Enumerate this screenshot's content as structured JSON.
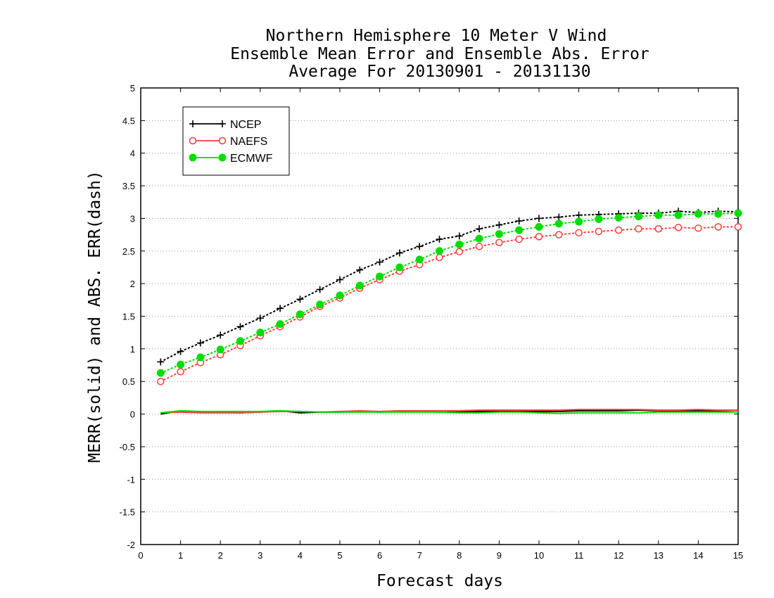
{
  "chart_data": {
    "type": "line",
    "title": [
      "Northern Hemisphere 10 Meter V Wind",
      "Ensemble Mean Error and Ensemble Abs. Error",
      "Average For 20130901 - 20131130"
    ],
    "xlabel": "Forecast days",
    "ylabel": "MERR(solid) and ABS. ERR(dash)",
    "xlim": [
      0,
      15
    ],
    "ylim": [
      -2,
      5
    ],
    "xticks": [
      0,
      1,
      2,
      3,
      4,
      5,
      6,
      7,
      8,
      9,
      10,
      11,
      12,
      13,
      14,
      15
    ],
    "yticks": [
      -2,
      -1.5,
      -1,
      -0.5,
      0,
      0.5,
      1,
      1.5,
      2,
      2.5,
      3,
      3.5,
      4,
      4.5,
      5
    ],
    "grid": "horizontal dotted",
    "legend_position": "top-left",
    "x": [
      0.5,
      1,
      1.5,
      2,
      2.5,
      3,
      3.5,
      4,
      4.5,
      5,
      5.5,
      6,
      6.5,
      7,
      7.5,
      8,
      8.5,
      9,
      9.5,
      10,
      10.5,
      11,
      11.5,
      12,
      12.5,
      13,
      13.5,
      14,
      14.5,
      15
    ],
    "series": [
      {
        "name": "NCEP",
        "color": "#000000",
        "marker": "plus",
        "abs_err": [
          0.8,
          0.96,
          1.09,
          1.21,
          1.34,
          1.47,
          1.62,
          1.76,
          1.91,
          2.06,
          2.21,
          2.33,
          2.47,
          2.57,
          2.68,
          2.73,
          2.84,
          2.9,
          2.96,
          3.0,
          3.02,
          3.05,
          3.06,
          3.07,
          3.08,
          3.08,
          3.11,
          3.09,
          3.11,
          3.1
        ],
        "mean_err": [
          0.0,
          0.05,
          0.03,
          0.03,
          0.02,
          0.03,
          0.05,
          0.02,
          0.03,
          0.03,
          0.04,
          0.03,
          0.04,
          0.04,
          0.03,
          0.03,
          0.04,
          0.04,
          0.05,
          0.04,
          0.04,
          0.05,
          0.05,
          0.05,
          0.06,
          0.05,
          0.05,
          0.05,
          0.05,
          0.06
        ]
      },
      {
        "name": "NAEFS",
        "color": "#ff3b3b",
        "marker": "open-circle",
        "abs_err": [
          0.5,
          0.65,
          0.79,
          0.91,
          1.05,
          1.2,
          1.34,
          1.49,
          1.65,
          1.78,
          1.93,
          2.06,
          2.19,
          2.29,
          2.4,
          2.49,
          2.57,
          2.63,
          2.68,
          2.72,
          2.75,
          2.78,
          2.8,
          2.82,
          2.84,
          2.84,
          2.86,
          2.85,
          2.87,
          2.87
        ],
        "mean_err": [
          0.02,
          0.03,
          0.02,
          0.02,
          0.02,
          0.03,
          0.04,
          0.04,
          0.03,
          0.04,
          0.05,
          0.04,
          0.05,
          0.05,
          0.05,
          0.05,
          0.06,
          0.06,
          0.06,
          0.06,
          0.06,
          0.07,
          0.07,
          0.07,
          0.07,
          0.06,
          0.06,
          0.07,
          0.06,
          0.06
        ]
      },
      {
        "name": "ECMWF",
        "color": "#00dd00",
        "marker": "filled-circle",
        "abs_err": [
          0.63,
          0.76,
          0.87,
          0.99,
          1.12,
          1.25,
          1.38,
          1.53,
          1.68,
          1.82,
          1.97,
          2.11,
          2.25,
          2.37,
          2.5,
          2.6,
          2.69,
          2.76,
          2.82,
          2.87,
          2.92,
          2.95,
          2.99,
          3.01,
          3.03,
          3.05,
          3.05,
          3.07,
          3.07,
          3.08
        ],
        "mean_err": [
          0.02,
          0.05,
          0.04,
          0.04,
          0.04,
          0.04,
          0.05,
          0.04,
          0.03,
          0.03,
          0.03,
          0.03,
          0.03,
          0.03,
          0.03,
          0.02,
          0.02,
          0.03,
          0.03,
          0.02,
          0.01,
          0.02,
          0.02,
          0.02,
          0.02,
          0.03,
          0.03,
          0.03,
          0.03,
          0.03
        ]
      }
    ]
  }
}
